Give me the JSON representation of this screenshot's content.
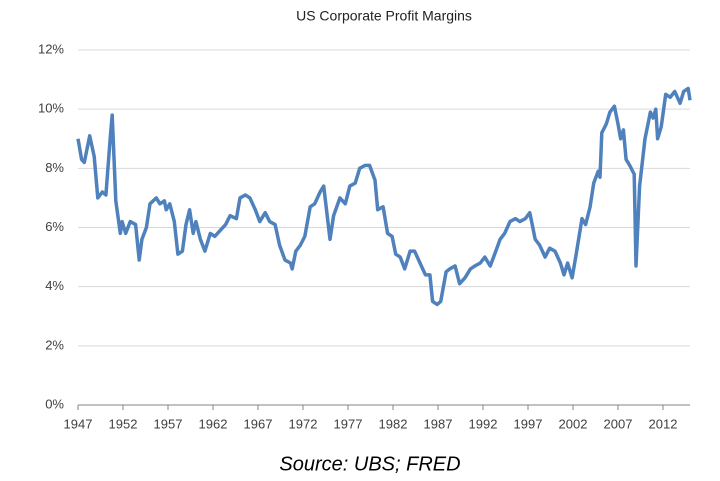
{
  "chart_data": {
    "type": "line",
    "title": "US Corporate Profit Margins",
    "source": "Source: UBS; FRED",
    "series": [
      {
        "name": "US Corporate Profit Margins",
        "color": "#4f81bd",
        "x": [
          1947,
          1947.4,
          1947.7,
          1948.3,
          1948.8,
          1949.2,
          1949.7,
          1950.1,
          1950.6,
          1950.8,
          1951.2,
          1951.7,
          1951.9,
          1952.3,
          1952.8,
          1953.4,
          1953.8,
          1954.1,
          1954.6,
          1955,
          1955.7,
          1956.1,
          1956.6,
          1956.8,
          1957.2,
          1957.7,
          1958.1,
          1958.6,
          1959,
          1959.4,
          1959.8,
          1960.1,
          1960.6,
          1961.1,
          1961.7,
          1962.2,
          1962.8,
          1963.4,
          1963.9,
          1964.6,
          1965,
          1965.6,
          1966.1,
          1966.7,
          1967.2,
          1967.8,
          1968.3,
          1968.9,
          1969.4,
          1970,
          1970.6,
          1970.8,
          1971.2,
          1971.7,
          1972.2,
          1972.8,
          1973.3,
          1973.9,
          1974.3,
          1975,
          1975.4,
          1976.1,
          1976.7,
          1977.2,
          1977.8,
          1978.3,
          1978.9,
          1979.4,
          1980,
          1980.3,
          1980.9,
          1981.4,
          1981.9,
          1982.3,
          1982.8,
          1983.3,
          1983.9,
          1984.4,
          1985,
          1985.6,
          1986.1,
          1986.4,
          1986.9,
          1987.3,
          1987.9,
          1988.3,
          1988.9,
          1989.4,
          1990,
          1990.6,
          1991.1,
          1991.7,
          1992.2,
          1992.8,
          1993.3,
          1993.9,
          1994.4,
          1995,
          1995.6,
          1996.1,
          1996.7,
          1997.2,
          1997.8,
          1998.3,
          1998.9,
          1999.4,
          2000,
          2000.6,
          2001,
          2001.4,
          2001.9,
          2002.3,
          2003,
          2003.4,
          2003.9,
          2004.3,
          2004.8,
          2005,
          2005.2,
          2005.7,
          2006.1,
          2006.6,
          2007,
          2007.3,
          2007.6,
          2007.9,
          2008.3,
          2008.8,
          2009,
          2009.4,
          2010,
          2010.6,
          2010.9,
          2011.2,
          2011.4,
          2011.8,
          2012.3,
          2012.8,
          2013.3,
          2013.9,
          2014.3,
          2014.8,
          2015
        ],
        "values": [
          9.0,
          8.3,
          8.2,
          9.1,
          8.4,
          7.0,
          7.2,
          7.1,
          9.1,
          9.8,
          6.9,
          5.8,
          6.2,
          5.8,
          6.2,
          6.1,
          4.9,
          5.6,
          6.0,
          6.8,
          7.0,
          6.8,
          6.9,
          6.6,
          6.8,
          6.2,
          5.1,
          5.2,
          6.1,
          6.6,
          5.8,
          6.2,
          5.6,
          5.2,
          5.8,
          5.7,
          5.9,
          6.1,
          6.4,
          6.3,
          7.0,
          7.1,
          7.0,
          6.6,
          6.2,
          6.5,
          6.2,
          6.1,
          5.4,
          4.9,
          4.8,
          4.6,
          5.2,
          5.4,
          5.7,
          6.7,
          6.8,
          7.2,
          7.4,
          5.6,
          6.4,
          7.0,
          6.8,
          7.4,
          7.5,
          8.0,
          8.1,
          8.1,
          7.6,
          6.6,
          6.7,
          5.8,
          5.7,
          5.1,
          5.0,
          4.6,
          5.2,
          5.2,
          4.8,
          4.4,
          4.4,
          3.5,
          3.4,
          3.5,
          4.5,
          4.6,
          4.7,
          4.1,
          4.3,
          4.6,
          4.7,
          4.8,
          5.0,
          4.7,
          5.1,
          5.6,
          5.8,
          6.2,
          6.3,
          6.2,
          6.3,
          6.5,
          5.6,
          5.4,
          5.0,
          5.3,
          5.2,
          4.8,
          4.4,
          4.8,
          4.3,
          5.0,
          6.3,
          6.1,
          6.7,
          7.5,
          7.9,
          7.7,
          9.2,
          9.5,
          9.9,
          10.1,
          9.5,
          9.0,
          9.3,
          8.3,
          8.1,
          7.8,
          4.7,
          7.4,
          9.0,
          9.9,
          9.7,
          10.0,
          9.0,
          9.4,
          10.5,
          10.4,
          10.6,
          10.2,
          10.6,
          10.7,
          10.3
        ]
      }
    ],
    "xlim": [
      1947,
      2015
    ],
    "xticks": [
      1947,
      1952,
      1957,
      1962,
      1967,
      1972,
      1977,
      1982,
      1987,
      1992,
      1997,
      2002,
      2007,
      2012
    ],
    "ylim": [
      0,
      12
    ],
    "yticks": [
      {
        "value": 0,
        "label": "0%"
      },
      {
        "value": 2,
        "label": "2%"
      },
      {
        "value": 4,
        "label": "4%"
      },
      {
        "value": 6,
        "label": "6%"
      },
      {
        "value": 8,
        "label": "8%"
      },
      {
        "value": 10,
        "label": "10%"
      },
      {
        "value": 12,
        "label": "12%"
      }
    ],
    "grid": true
  }
}
